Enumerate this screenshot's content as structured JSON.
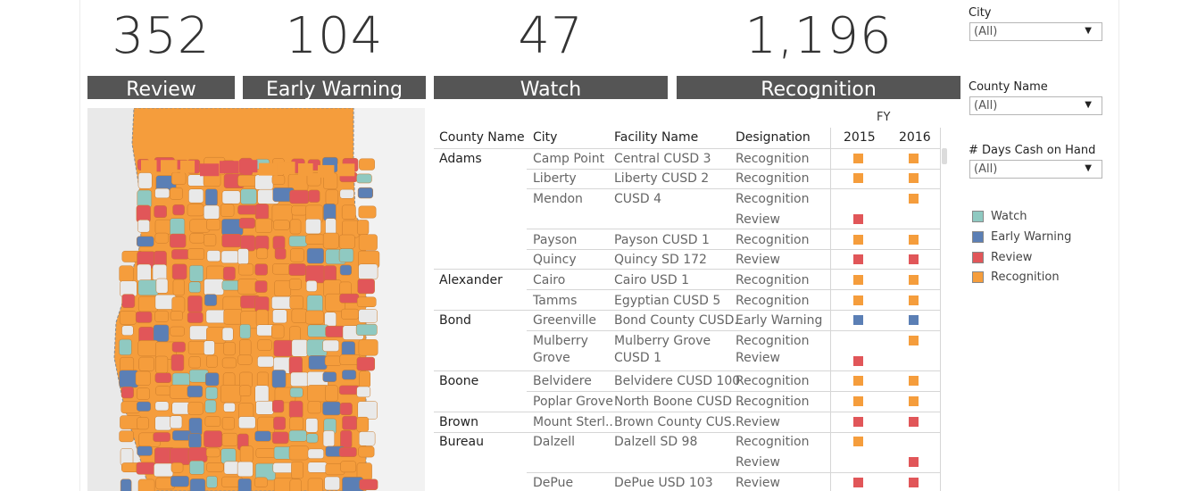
{
  "kpis": [
    {
      "value": "352",
      "label": "Review"
    },
    {
      "value": "104",
      "label": "Early Warning"
    },
    {
      "value": "47",
      "label": "Watch"
    },
    {
      "value": "1,196",
      "label": "Recognition"
    }
  ],
  "table": {
    "fy_label": "FY",
    "headers": {
      "county": "County Name",
      "city": "City",
      "facility": "Facility Name",
      "designation": "Designation",
      "y2015": "2015",
      "y2016": "2016"
    },
    "counties": [
      "Adams",
      "Alexander",
      "Bond",
      "Boone",
      "Brown",
      "Bureau"
    ],
    "rows": [
      {
        "city": "Camp Point",
        "facility": "Central CUSD 3",
        "designation": "Recognition"
      },
      {
        "city": "Liberty",
        "facility": "Liberty CUSD 2",
        "designation": "Recognition"
      },
      {
        "city": "Mendon",
        "facility": "CUSD 4",
        "designation": "Recognition"
      },
      {
        "city": "",
        "facility": "",
        "designation": "Review"
      },
      {
        "city": "Payson",
        "facility": "Payson CUSD 1",
        "designation": "Recognition"
      },
      {
        "city": "Quincy",
        "facility": "Quincy SD 172",
        "designation": "Review"
      },
      {
        "city": "Cairo",
        "facility": "Cairo USD 1",
        "designation": "Recognition"
      },
      {
        "city": "Tamms",
        "facility": "Egyptian CUSD 5",
        "designation": "Recognition"
      },
      {
        "city": "Greenville",
        "facility": "Bond County CUSD..",
        "designation": "Early Warning"
      },
      {
        "city": "Mulberry",
        "facility": "Mulberry Grove",
        "designation": "Recognition"
      },
      {
        "city": "Grove",
        "facility": "CUSD 1",
        "designation": "Review"
      },
      {
        "city": "Belvidere",
        "facility": "Belvidere CUSD 100",
        "designation": "Recognition"
      },
      {
        "city": "Poplar Grove",
        "facility": "North Boone CUSD ..",
        "designation": "Recognition"
      },
      {
        "city": "Mount Sterl..",
        "facility": "Brown County CUS..",
        "designation": "Review"
      },
      {
        "city": "Dalzell",
        "facility": "Dalzell SD 98",
        "designation": "Recognition"
      },
      {
        "city": "",
        "facility": "",
        "designation": "Review"
      },
      {
        "city": "DePue",
        "facility": "DePue USD 103",
        "designation": "Review"
      }
    ]
  },
  "filters": [
    {
      "label": "City",
      "value": "(All)"
    },
    {
      "label": "County Name",
      "value": "(All)"
    },
    {
      "label": "# Days Cash on Hand",
      "value": "(All)"
    }
  ],
  "legend": [
    {
      "label": "Watch",
      "color": "#8fc9c1"
    },
    {
      "label": "Early Warning",
      "color": "#5b7fb5"
    },
    {
      "label": "Review",
      "color": "#e15659"
    },
    {
      "label": "Recognition",
      "color": "#f59d3c"
    }
  ],
  "colors": {
    "Watch": "#8fc9c1",
    "Early Warning": "#5b7fb5",
    "Review": "#e15659",
    "Recognition": "#f59d3c"
  }
}
